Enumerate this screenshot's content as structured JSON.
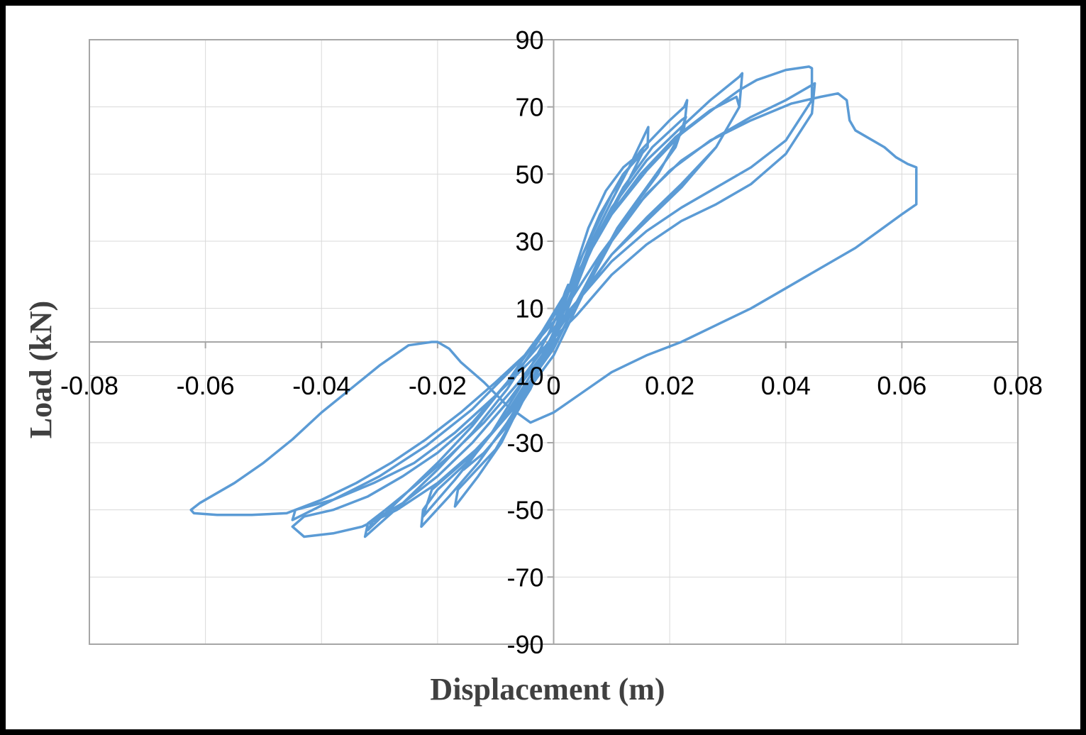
{
  "chart_data": {
    "type": "line",
    "title": "",
    "xlabel": "Displacement  (m)",
    "ylabel": "Load (kN)",
    "xlim": [
      -0.08,
      0.08
    ],
    "ylim": [
      -90,
      90
    ],
    "grid": true,
    "legend": "none",
    "colors": {
      "series": "#5b9bd5",
      "axes": "#a6a6a6",
      "grid": "#d9d9d9",
      "frame": "#000000"
    },
    "x_ticks": [
      {
        "value": -0.08,
        "label": "-0.08"
      },
      {
        "value": -0.06,
        "label": "-0.06"
      },
      {
        "value": -0.04,
        "label": "-0.04"
      },
      {
        "value": -0.02,
        "label": "-0.02"
      },
      {
        "value": 0,
        "label": "0"
      },
      {
        "value": 0.02,
        "label": "0.02"
      },
      {
        "value": 0.04,
        "label": "0.04"
      },
      {
        "value": 0.06,
        "label": "0.06"
      },
      {
        "value": 0.08,
        "label": "0.08"
      }
    ],
    "y_ticks": [
      {
        "value": 90,
        "label": "90"
      },
      {
        "value": 70,
        "label": "70"
      },
      {
        "value": 50,
        "label": "50"
      },
      {
        "value": 30,
        "label": "30"
      },
      {
        "value": 10,
        "label": "10"
      },
      {
        "value": -10,
        "label": "-10"
      },
      {
        "value": -30,
        "label": "-30"
      },
      {
        "value": -50,
        "label": "-50"
      },
      {
        "value": -70,
        "label": "-70"
      },
      {
        "value": -90,
        "label": "-90"
      }
    ],
    "series": [
      {
        "values": [
          [
            0,
            0
          ],
          [
            0.003,
            18
          ],
          [
            0.006,
            34
          ],
          [
            0.009,
            45
          ],
          [
            0.012,
            52
          ],
          [
            0.0155,
            57
          ],
          [
            0.012,
            45
          ],
          [
            0.008,
            33
          ],
          [
            0.004,
            18
          ],
          [
            0,
            2
          ],
          [
            -0.004,
            -14
          ],
          [
            -0.008,
            -25
          ],
          [
            -0.012,
            -33
          ],
          [
            -0.0155,
            -38
          ],
          [
            -0.012,
            -30
          ],
          [
            -0.008,
            -21
          ],
          [
            -0.004,
            -10
          ],
          [
            0,
            2
          ],
          [
            0.004,
            22
          ],
          [
            0.008,
            38
          ],
          [
            0.012,
            50
          ],
          [
            0.0162,
            58
          ],
          [
            0.0163,
            64
          ],
          [
            0.013,
            52
          ],
          [
            0.01,
            42
          ],
          [
            0.006,
            28
          ],
          [
            0.002,
            10
          ],
          [
            -0.002,
            -6
          ],
          [
            -0.006,
            -20
          ],
          [
            -0.01,
            -32
          ],
          [
            -0.0165,
            -44
          ],
          [
            -0.017,
            -49
          ],
          [
            -0.013,
            -40
          ],
          [
            -0.009,
            -30
          ],
          [
            -0.005,
            -16
          ],
          [
            0,
            3
          ],
          [
            0.005,
            26
          ],
          [
            0.01,
            44
          ],
          [
            0.015,
            57
          ],
          [
            0.02,
            66
          ],
          [
            0.0225,
            70
          ],
          [
            0.023,
            72
          ],
          [
            0.0225,
            64
          ],
          [
            0.018,
            50
          ],
          [
            0.012,
            36
          ],
          [
            0.008,
            25
          ],
          [
            0.004,
            12
          ],
          [
            0,
            -2
          ],
          [
            -0.005,
            -14
          ],
          [
            -0.01,
            -26
          ],
          [
            -0.015,
            -36
          ],
          [
            -0.02,
            -44
          ],
          [
            -0.0225,
            -50
          ],
          [
            -0.0228,
            -55
          ],
          [
            -0.018,
            -46
          ],
          [
            -0.013,
            -36
          ],
          [
            -0.008,
            -24
          ],
          [
            -0.003,
            -10
          ],
          [
            0.002,
            8
          ],
          [
            0.007,
            30
          ],
          [
            0.012,
            46
          ],
          [
            0.017,
            58
          ],
          [
            0.022,
            66
          ],
          [
            0.0228,
            67
          ],
          [
            0.021,
            58
          ],
          [
            0.016,
            46
          ],
          [
            0.011,
            34
          ],
          [
            0.006,
            18
          ],
          [
            0.001,
            2
          ],
          [
            -0.004,
            -12
          ],
          [
            -0.009,
            -24
          ],
          [
            -0.015,
            -35
          ],
          [
            -0.021,
            -44
          ],
          [
            -0.0225,
            -52
          ],
          [
            -0.017,
            -41
          ],
          [
            -0.011,
            -28
          ],
          [
            -0.006,
            -14
          ],
          [
            -0.001,
            2
          ],
          [
            0.004,
            20
          ],
          [
            0.01,
            40
          ],
          [
            0.016,
            54
          ],
          [
            0.022,
            64
          ],
          [
            0.027,
            72
          ],
          [
            0.032,
            79
          ],
          [
            0.0325,
            80
          ],
          [
            0.032,
            70
          ],
          [
            0.028,
            58
          ],
          [
            0.022,
            46
          ],
          [
            0.016,
            36
          ],
          [
            0.01,
            26
          ],
          [
            0.005,
            14
          ],
          [
            0,
            2
          ],
          [
            -0.006,
            -12
          ],
          [
            -0.012,
            -24
          ],
          [
            -0.018,
            -34
          ],
          [
            -0.024,
            -43
          ],
          [
            -0.029,
            -50
          ],
          [
            -0.032,
            -54
          ],
          [
            -0.0325,
            -58
          ],
          [
            -0.026,
            -48
          ],
          [
            -0.02,
            -38
          ],
          [
            -0.014,
            -27
          ],
          [
            -0.008,
            -14
          ],
          [
            -0.002,
            2
          ],
          [
            0.003,
            16
          ],
          [
            0.009,
            36
          ],
          [
            0.015,
            50
          ],
          [
            0.021,
            61
          ],
          [
            0.027,
            69
          ],
          [
            0.0315,
            73
          ],
          [
            0.032,
            70
          ],
          [
            0.028,
            58
          ],
          [
            0.022,
            47
          ],
          [
            0.016,
            37
          ],
          [
            0.01,
            26
          ],
          [
            0.004,
            12
          ],
          [
            -0.002,
            -4
          ],
          [
            -0.008,
            -18
          ],
          [
            -0.014,
            -30
          ],
          [
            -0.02,
            -40
          ],
          [
            -0.026,
            -48
          ],
          [
            -0.031,
            -53
          ],
          [
            -0.032,
            -56
          ],
          [
            -0.026,
            -46
          ],
          [
            -0.02,
            -36
          ],
          [
            -0.014,
            -25
          ],
          [
            -0.008,
            -12
          ],
          [
            -0.002,
            3
          ],
          [
            0.004,
            20
          ],
          [
            0.01,
            38
          ],
          [
            0.016,
            51
          ],
          [
            0.022,
            62
          ],
          [
            0.028,
            70
          ],
          [
            0.032,
            75
          ],
          [
            0.035,
            78
          ],
          [
            0.04,
            81
          ],
          [
            0.044,
            82
          ],
          [
            0.0445,
            81.5
          ],
          [
            0.0445,
            72
          ],
          [
            0.04,
            60
          ],
          [
            0.034,
            52
          ],
          [
            0.028,
            46
          ],
          [
            0.022,
            40
          ],
          [
            0.016,
            33
          ],
          [
            0.01,
            24
          ],
          [
            0.004,
            12
          ],
          [
            -0.002,
            0
          ],
          [
            -0.008,
            -12
          ],
          [
            -0.014,
            -24
          ],
          [
            -0.02,
            -33
          ],
          [
            -0.026,
            -40
          ],
          [
            -0.032,
            -46
          ],
          [
            -0.038,
            -50
          ],
          [
            -0.043,
            -52
          ],
          [
            -0.045,
            -55
          ],
          [
            -0.043,
            -58
          ],
          [
            -0.038,
            -57
          ],
          [
            -0.033,
            -55
          ],
          [
            -0.027,
            -50
          ],
          [
            -0.02,
            -42
          ],
          [
            -0.012,
            -30
          ],
          [
            -0.006,
            -18
          ],
          [
            0,
            -4
          ],
          [
            0.005,
            14
          ],
          [
            0.01,
            30
          ],
          [
            0.016,
            44
          ],
          [
            0.022,
            54
          ],
          [
            0.028,
            61
          ],
          [
            0.034,
            67
          ],
          [
            0.04,
            72
          ],
          [
            0.044,
            76
          ],
          [
            0.045,
            77
          ],
          [
            0.0445,
            68
          ],
          [
            0.04,
            56
          ],
          [
            0.034,
            47
          ],
          [
            0.028,
            41
          ],
          [
            0.022,
            36
          ],
          [
            0.016,
            29
          ],
          [
            0.01,
            20
          ],
          [
            0.004,
            8
          ],
          [
            -0.003,
            -4
          ],
          [
            -0.01,
            -16
          ],
          [
            -0.017,
            -27
          ],
          [
            -0.024,
            -36
          ],
          [
            -0.031,
            -42
          ],
          [
            -0.038,
            -47
          ],
          [
            -0.0445,
            -50
          ],
          [
            -0.045,
            -53
          ],
          [
            -0.038,
            -47
          ],
          [
            -0.03,
            -40
          ],
          [
            -0.022,
            -31
          ],
          [
            -0.014,
            -20
          ],
          [
            -0.006,
            -6
          ],
          [
            0.002,
            10
          ],
          [
            0.008,
            26
          ],
          [
            0.014,
            40
          ],
          [
            0.02,
            51
          ],
          [
            0.027,
            60
          ],
          [
            0.034,
            66
          ],
          [
            0.041,
            71
          ],
          [
            0.046,
            73
          ],
          [
            0.049,
            74
          ],
          [
            0.0505,
            72
          ],
          [
            0.051,
            66
          ],
          [
            0.052,
            63
          ],
          [
            0.054,
            61
          ],
          [
            0.057,
            58
          ],
          [
            0.059,
            55
          ],
          [
            0.061,
            53
          ],
          [
            0.0625,
            52
          ],
          [
            0.0625,
            41
          ],
          [
            0.06,
            38
          ],
          [
            0.056,
            33
          ],
          [
            0.052,
            28
          ],
          [
            0.046,
            22
          ],
          [
            0.04,
            16
          ],
          [
            0.034,
            10
          ],
          [
            0.028,
            5
          ],
          [
            0.022,
            0
          ],
          [
            0.016,
            -4
          ],
          [
            0.01,
            -9
          ],
          [
            0.005,
            -15
          ],
          [
            0,
            -21
          ],
          [
            -0.004,
            -24
          ],
          [
            -0.008,
            -19
          ],
          [
            -0.012,
            -12
          ],
          [
            -0.016,
            -6
          ],
          [
            -0.018,
            -2
          ],
          [
            -0.019,
            -1
          ],
          [
            -0.02,
            0
          ],
          [
            -0.021,
            0
          ],
          [
            -0.025,
            -1
          ],
          [
            -0.03,
            -7
          ],
          [
            -0.035,
            -14
          ],
          [
            -0.04,
            -21
          ],
          [
            -0.045,
            -29
          ],
          [
            -0.05,
            -36
          ],
          [
            -0.055,
            -42
          ],
          [
            -0.059,
            -46
          ],
          [
            -0.061,
            -48
          ],
          [
            -0.0625,
            -50
          ],
          [
            -0.062,
            -51
          ],
          [
            -0.058,
            -51.5
          ],
          [
            -0.052,
            -51.5
          ],
          [
            -0.046,
            -51
          ],
          [
            -0.04,
            -47
          ],
          [
            -0.034,
            -42
          ],
          [
            -0.028,
            -36
          ],
          [
            -0.022,
            -29
          ],
          [
            -0.016,
            -21
          ],
          [
            -0.01,
            -12
          ],
          [
            -0.005,
            -4
          ],
          [
            -0.002,
            3
          ],
          [
            0.001,
            10
          ],
          [
            0.002,
            15
          ],
          [
            0.0025,
            17
          ]
        ]
      }
    ]
  }
}
